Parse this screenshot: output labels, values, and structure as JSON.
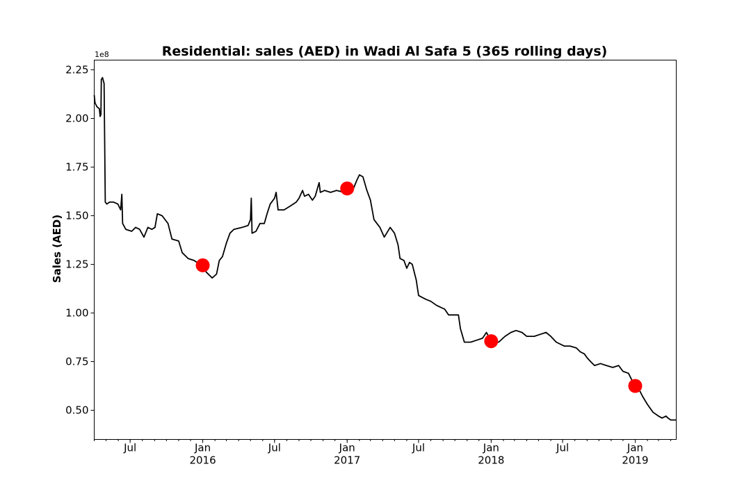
{
  "chart_data": {
    "type": "line",
    "title": "Residential: sales (AED) in Wadi Al Safa 5 (365 rolling days)",
    "ylabel": "Sales (AED)",
    "xlabel": "",
    "y_scale_label": "1e8",
    "ylim": [
      0.35,
      2.3
    ],
    "xlim": [
      "2015-04-01",
      "2019-04-15"
    ],
    "grid": false,
    "y_ticks": [
      {
        "value": 0.5,
        "label": "0.50"
      },
      {
        "value": 0.75,
        "label": "0.75"
      },
      {
        "value": 1.0,
        "label": "1.00"
      },
      {
        "value": 1.25,
        "label": "1.25"
      },
      {
        "value": 1.5,
        "label": "1.50"
      },
      {
        "value": 1.75,
        "label": "1.75"
      },
      {
        "value": 2.0,
        "label": "2.00"
      },
      {
        "value": 2.25,
        "label": "2.25"
      }
    ],
    "x_ticks": [
      {
        "date": "2015-07-01",
        "label": "Jul",
        "sublabel": ""
      },
      {
        "date": "2016-01-01",
        "label": "Jan",
        "sublabel": "2016"
      },
      {
        "date": "2016-07-01",
        "label": "Jul",
        "sublabel": ""
      },
      {
        "date": "2017-01-01",
        "label": "Jan",
        "sublabel": "2017"
      },
      {
        "date": "2017-07-01",
        "label": "Jul",
        "sublabel": ""
      },
      {
        "date": "2018-01-01",
        "label": "Jan",
        "sublabel": "2018"
      },
      {
        "date": "2018-07-01",
        "label": "Jul",
        "sublabel": ""
      },
      {
        "date": "2019-01-01",
        "label": "Jan",
        "sublabel": "2019"
      }
    ],
    "series": [
      {
        "line_color": "#000000",
        "points": [
          [
            "2015-04-01",
            2.12
          ],
          [
            "2015-04-03",
            2.08
          ],
          [
            "2015-04-08",
            2.06
          ],
          [
            "2015-04-14",
            2.05
          ],
          [
            "2015-04-16",
            2.01
          ],
          [
            "2015-04-18",
            2.02
          ],
          [
            "2015-04-19",
            2.2
          ],
          [
            "2015-04-22",
            2.21
          ],
          [
            "2015-04-26",
            2.18
          ],
          [
            "2015-04-29",
            1.57
          ],
          [
            "2015-05-03",
            1.56
          ],
          [
            "2015-05-10",
            1.57
          ],
          [
            "2015-05-20",
            1.57
          ],
          [
            "2015-05-31",
            1.56
          ],
          [
            "2015-06-07",
            1.53
          ],
          [
            "2015-06-10",
            1.61
          ],
          [
            "2015-06-12",
            1.46
          ],
          [
            "2015-06-20",
            1.43
          ],
          [
            "2015-07-05",
            1.42
          ],
          [
            "2015-07-15",
            1.44
          ],
          [
            "2015-07-25",
            1.43
          ],
          [
            "2015-08-05",
            1.39
          ],
          [
            "2015-08-15",
            1.44
          ],
          [
            "2015-08-25",
            1.43
          ],
          [
            "2015-09-02",
            1.44
          ],
          [
            "2015-09-08",
            1.51
          ],
          [
            "2015-09-20",
            1.5
          ],
          [
            "2015-10-05",
            1.46
          ],
          [
            "2015-10-15",
            1.38
          ],
          [
            "2015-11-01",
            1.37
          ],
          [
            "2015-11-10",
            1.31
          ],
          [
            "2015-11-25",
            1.28
          ],
          [
            "2015-12-10",
            1.27
          ],
          [
            "2016-01-01",
            1.24
          ],
          [
            "2016-01-10",
            1.21
          ],
          [
            "2016-01-25",
            1.18
          ],
          [
            "2016-02-05",
            1.2
          ],
          [
            "2016-02-12",
            1.27
          ],
          [
            "2016-02-20",
            1.29
          ],
          [
            "2016-03-01",
            1.36
          ],
          [
            "2016-03-10",
            1.41
          ],
          [
            "2016-03-20",
            1.43
          ],
          [
            "2016-04-10",
            1.44
          ],
          [
            "2016-04-25",
            1.45
          ],
          [
            "2016-05-01",
            1.48
          ],
          [
            "2016-05-03",
            1.59
          ],
          [
            "2016-05-05",
            1.41
          ],
          [
            "2016-05-15",
            1.42
          ],
          [
            "2016-05-25",
            1.46
          ],
          [
            "2016-06-05",
            1.46
          ],
          [
            "2016-06-12",
            1.51
          ],
          [
            "2016-06-20",
            1.56
          ],
          [
            "2016-07-01",
            1.59
          ],
          [
            "2016-07-05",
            1.62
          ],
          [
            "2016-07-10",
            1.53
          ],
          [
            "2016-07-25",
            1.53
          ],
          [
            "2016-08-10",
            1.55
          ],
          [
            "2016-08-25",
            1.57
          ],
          [
            "2016-09-01",
            1.59
          ],
          [
            "2016-09-10",
            1.63
          ],
          [
            "2016-09-15",
            1.6
          ],
          [
            "2016-09-25",
            1.61
          ],
          [
            "2016-10-05",
            1.58
          ],
          [
            "2016-10-12",
            1.6
          ],
          [
            "2016-10-22",
            1.67
          ],
          [
            "2016-10-25",
            1.62
          ],
          [
            "2016-11-05",
            1.63
          ],
          [
            "2016-11-20",
            1.62
          ],
          [
            "2016-12-05",
            1.63
          ],
          [
            "2016-12-25",
            1.62
          ],
          [
            "2017-01-01",
            1.64
          ],
          [
            "2017-01-15",
            1.63
          ],
          [
            "2017-01-25",
            1.68
          ],
          [
            "2017-02-01",
            1.71
          ],
          [
            "2017-02-10",
            1.7
          ],
          [
            "2017-02-20",
            1.63
          ],
          [
            "2017-03-01",
            1.58
          ],
          [
            "2017-03-10",
            1.48
          ],
          [
            "2017-03-25",
            1.44
          ],
          [
            "2017-04-05",
            1.39
          ],
          [
            "2017-04-20",
            1.44
          ],
          [
            "2017-05-01",
            1.41
          ],
          [
            "2017-05-10",
            1.35
          ],
          [
            "2017-05-15",
            1.28
          ],
          [
            "2017-05-25",
            1.27
          ],
          [
            "2017-06-01",
            1.23
          ],
          [
            "2017-06-08",
            1.26
          ],
          [
            "2017-06-15",
            1.25
          ],
          [
            "2017-06-25",
            1.17
          ],
          [
            "2017-07-01",
            1.09
          ],
          [
            "2017-07-10",
            1.08
          ],
          [
            "2017-07-20",
            1.07
          ],
          [
            "2017-08-01",
            1.06
          ],
          [
            "2017-08-15",
            1.04
          ],
          [
            "2017-08-25",
            1.03
          ],
          [
            "2017-09-05",
            1.02
          ],
          [
            "2017-09-15",
            0.99
          ],
          [
            "2017-10-01",
            0.99
          ],
          [
            "2017-10-10",
            0.99
          ],
          [
            "2017-10-15",
            0.92
          ],
          [
            "2017-10-25",
            0.85
          ],
          [
            "2017-11-10",
            0.85
          ],
          [
            "2017-11-25",
            0.86
          ],
          [
            "2017-12-10",
            0.87
          ],
          [
            "2017-12-20",
            0.9
          ],
          [
            "2017-12-28",
            0.87
          ],
          [
            "2018-01-01",
            0.85
          ],
          [
            "2018-01-20",
            0.85
          ],
          [
            "2018-02-05",
            0.88
          ],
          [
            "2018-02-20",
            0.9
          ],
          [
            "2018-03-05",
            0.91
          ],
          [
            "2018-03-20",
            0.9
          ],
          [
            "2018-04-01",
            0.88
          ],
          [
            "2018-04-20",
            0.88
          ],
          [
            "2018-05-05",
            0.89
          ],
          [
            "2018-05-20",
            0.9
          ],
          [
            "2018-06-01",
            0.88
          ],
          [
            "2018-06-15",
            0.85
          ],
          [
            "2018-07-05",
            0.83
          ],
          [
            "2018-07-20",
            0.83
          ],
          [
            "2018-08-05",
            0.82
          ],
          [
            "2018-08-15",
            0.8
          ],
          [
            "2018-08-25",
            0.79
          ],
          [
            "2018-09-01",
            0.77
          ],
          [
            "2018-09-10",
            0.75
          ],
          [
            "2018-09-20",
            0.73
          ],
          [
            "2018-10-05",
            0.74
          ],
          [
            "2018-10-20",
            0.73
          ],
          [
            "2018-11-05",
            0.72
          ],
          [
            "2018-11-20",
            0.73
          ],
          [
            "2018-12-01",
            0.7
          ],
          [
            "2018-12-15",
            0.69
          ],
          [
            "2019-01-01",
            0.62
          ],
          [
            "2019-01-10",
            0.61
          ],
          [
            "2019-01-20",
            0.57
          ],
          [
            "2019-02-01",
            0.53
          ],
          [
            "2019-02-15",
            0.49
          ],
          [
            "2019-03-01",
            0.47
          ],
          [
            "2019-03-10",
            0.46
          ],
          [
            "2019-03-20",
            0.47
          ],
          [
            "2019-03-25",
            0.46
          ],
          [
            "2019-04-01",
            0.45
          ],
          [
            "2019-04-15",
            0.45
          ]
        ]
      }
    ],
    "markers": {
      "color": "#ff0000",
      "points": [
        [
          "2016-01-01",
          1.245
        ],
        [
          "2017-01-01",
          1.64
        ],
        [
          "2018-01-01",
          0.855
        ],
        [
          "2019-01-01",
          0.625
        ]
      ]
    }
  }
}
